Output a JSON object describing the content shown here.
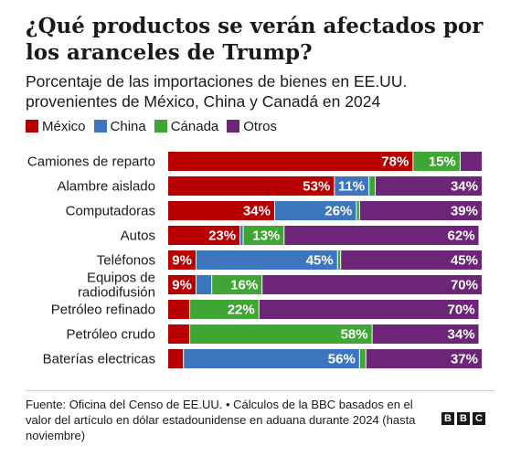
{
  "chart_data": {
    "type": "bar",
    "orientation": "horizontal",
    "stacked": true,
    "title": "¿Qué productos se verán afectados por los aranceles de Trump?",
    "subtitle": "Porcentaje de las importaciones de bienes en EE.UU. provenientes de México, China y Canadá en 2024",
    "legend_position": "top-left",
    "xlim": [
      0,
      100
    ],
    "grid": false,
    "categories": [
      "Camiones de reparto",
      "Alambre aislado",
      "Computadoras",
      "Autos",
      "Teléfonos",
      "Equipos de radiodifusión",
      "Petróleo refinado",
      "Petróleo crudo",
      "Baterías electricas"
    ],
    "series": [
      {
        "name": "México",
        "color": "#b80000",
        "values": [
          78,
          53,
          34,
          23,
          9,
          9,
          7,
          7,
          5
        ]
      },
      {
        "name": "China",
        "color": "#3d75bf",
        "values": [
          0,
          11,
          26,
          1,
          45,
          5,
          0,
          0,
          56
        ]
      },
      {
        "name": "Cánada",
        "color": "#3fa535",
        "values": [
          15,
          2,
          1,
          13,
          1,
          16,
          22,
          58,
          2
        ]
      },
      {
        "name": "Otros",
        "color": "#6d2577",
        "values": [
          7,
          34,
          39,
          62,
          45,
          70,
          70,
          34,
          37
        ]
      }
    ],
    "data_labels": [
      [
        "78%",
        "",
        "15%",
        ""
      ],
      [
        "53%",
        "11%",
        "",
        "34%"
      ],
      [
        "34%",
        "26%",
        "",
        "39%"
      ],
      [
        "23%",
        "",
        "13%",
        "62%"
      ],
      [
        "9%",
        "45%",
        "",
        "45%"
      ],
      [
        "9%",
        "",
        "16%",
        "70%"
      ],
      [
        "",
        "",
        "22%",
        "70%"
      ],
      [
        "",
        "",
        "58%",
        "34%"
      ],
      [
        "",
        "56%",
        "",
        "37%"
      ]
    ]
  },
  "footer": {
    "source": "Fuente: Oficina del Censo de EE.UU. • Cálculos de la BBC basados en el valor del artículo en dólar estadounidense en aduana durante 2024 (hasta noviembre)",
    "logo_letters": [
      "B",
      "B",
      "C"
    ]
  }
}
